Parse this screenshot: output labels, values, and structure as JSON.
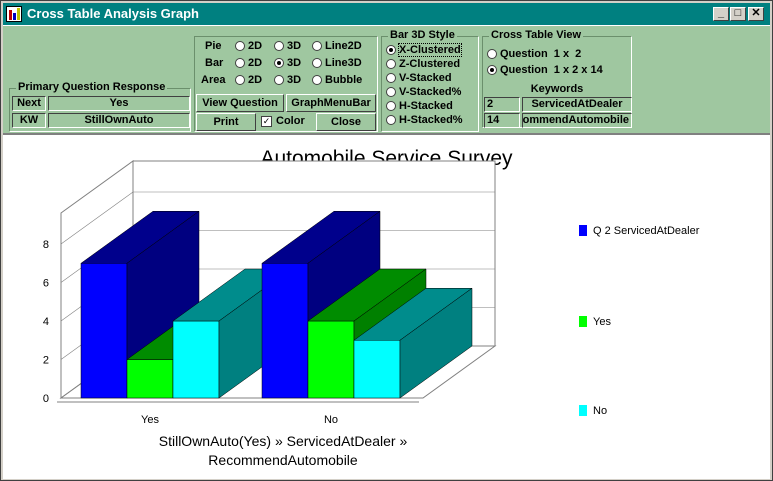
{
  "window": {
    "title": "Cross Table Analysis Graph"
  },
  "primary": {
    "title": "Primary Question Response",
    "rows": [
      {
        "key": "Next",
        "value": "Yes"
      },
      {
        "key": "KW",
        "value": "StillOwnAuto"
      }
    ]
  },
  "graph_type": {
    "rows": [
      {
        "label": "Pie",
        "options": [
          "2D",
          "3D",
          "Line2D"
        ]
      },
      {
        "label": "Bar",
        "options": [
          "2D",
          "3D",
          "Line3D"
        ]
      },
      {
        "label": "Area",
        "options": [
          "2D",
          "3D",
          "Bubble"
        ]
      }
    ],
    "selected": "Bar 3D"
  },
  "buttons": {
    "view_question": "View Question",
    "graph_menu_bar": "GraphMenuBar",
    "print": "Print",
    "color": "Color",
    "close": "Close"
  },
  "bar_style": {
    "title": "Bar 3D Style",
    "options": [
      "X-Clustered",
      "Z-Clustered",
      "V-Stacked",
      "V-Stacked%",
      "H-Stacked",
      "H-Stacked%"
    ],
    "selected": "X-Clustered"
  },
  "cross_table": {
    "title": "Cross Table View",
    "options": [
      "Question  1 x  2",
      "Question  1 x 2 x 14"
    ],
    "selected": "Question  1 x 2 x 14",
    "keywords_title": "Keywords",
    "keywords": [
      {
        "num": "2",
        "name": "ServicedAtDealer"
      },
      {
        "num": "14",
        "name": "RecommendAutomobile"
      }
    ]
  },
  "chart_data": {
    "type": "bar",
    "title": "Automobile Service Survey",
    "categories": [
      "Yes",
      "No"
    ],
    "series": [
      {
        "name": "Q 2 ServicedAtDealer",
        "color": "#0000ff",
        "values": [
          7,
          7
        ]
      },
      {
        "name": "Yes",
        "color": "#00ff00",
        "values": [
          2,
          4
        ]
      },
      {
        "name": "No",
        "color": "#00ffff",
        "values": [
          4,
          3
        ]
      }
    ],
    "yticks": [
      "0",
      "2",
      "4",
      "6",
      "8"
    ],
    "ylim": [
      0,
      8
    ],
    "caption_line1": "StillOwnAuto(Yes) » ServicedAtDealer »",
    "caption_line2": "RecommendAutomobile",
    "legend": [
      "Q 2 ServicedAtDealer",
      "Yes",
      "No"
    ]
  }
}
